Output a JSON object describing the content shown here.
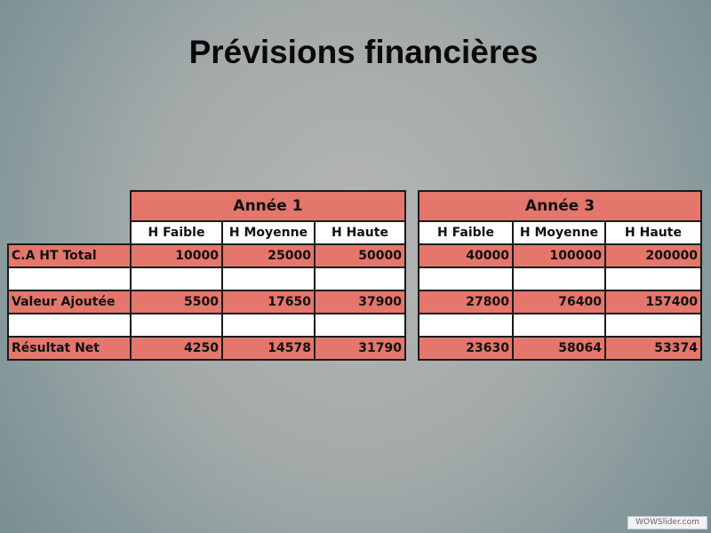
{
  "slide": {
    "title": "Prévisions financières"
  },
  "table_year1": {
    "year_label": "Année 1",
    "columns": [
      "H Faible",
      "H Moyenne",
      "H Haute"
    ],
    "rows": [
      {
        "label": "C.A HT Total",
        "values": [
          "10000",
          "25000",
          "50000"
        ]
      },
      {
        "label": "",
        "values": [
          "",
          "",
          ""
        ]
      },
      {
        "label": "Valeur Ajoutée",
        "values": [
          "5500",
          "17650",
          "37900"
        ]
      },
      {
        "label": "",
        "values": [
          "",
          "",
          ""
        ]
      },
      {
        "label": "Résultat Net",
        "values": [
          "4250",
          "14578",
          "31790"
        ]
      }
    ]
  },
  "table_year3": {
    "year_label": "Année 3",
    "columns": [
      "H Faible",
      "H Moyenne",
      "H Haute"
    ],
    "rows": [
      {
        "values": [
          "40000",
          "100000",
          "200000"
        ]
      },
      {
        "values": [
          "",
          "",
          ""
        ]
      },
      {
        "values": [
          "27800",
          "76400",
          "157400"
        ]
      },
      {
        "values": [
          "",
          "",
          ""
        ]
      },
      {
        "values": [
          "23630",
          "58064",
          "53374"
        ]
      }
    ]
  },
  "watermark": "WOWSlider.com",
  "colors": {
    "cell_highlight": "#e4766c",
    "cell_plain": "#ffffff",
    "background_center": "#b4b6b5",
    "background_edge": "#6a8589"
  }
}
